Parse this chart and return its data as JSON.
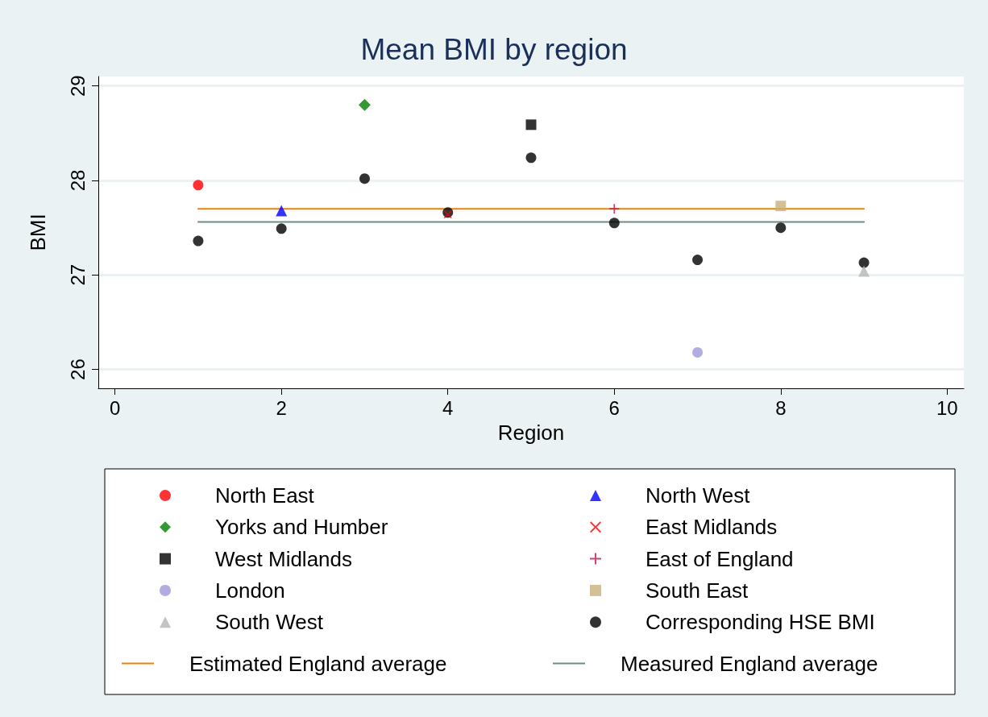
{
  "chart_data": {
    "type": "scatter",
    "title": "Mean BMI by region",
    "xlabel": "Region",
    "ylabel": "BMI",
    "xlim": [
      -0.2,
      10.2
    ],
    "xticks": [
      0,
      2,
      4,
      6,
      8,
      10
    ],
    "ylim": [
      25.8,
      29.1
    ],
    "yticks": [
      26,
      27,
      28,
      29
    ],
    "grid": "y",
    "legend": "bottom",
    "series": [
      {
        "name": "North East",
        "color": "#ff0000",
        "marker": "circle",
        "x": [
          1
        ],
        "values": [
          27.95
        ]
      },
      {
        "name": "North West",
        "color": "#0000ff",
        "marker": "triangle",
        "x": [
          2
        ],
        "values": [
          27.68
        ]
      },
      {
        "name": "Yorks and Humber",
        "color": "#008000",
        "marker": "diamond",
        "x": [
          3
        ],
        "values": [
          28.8
        ]
      },
      {
        "name": "East Midlands",
        "color": "#ff0000",
        "marker": "cross",
        "x": [
          4
        ],
        "values": [
          27.64
        ]
      },
      {
        "name": "West Midlands",
        "color": "#000000",
        "marker": "square",
        "x": [
          5
        ],
        "values": [
          28.59
        ]
      },
      {
        "name": "East of England",
        "color": "#c8104a",
        "marker": "plus",
        "x": [
          6
        ],
        "values": [
          27.7
        ]
      },
      {
        "name": "London",
        "color": "#9e98d9",
        "marker": "circle",
        "x": [
          7
        ],
        "values": [
          26.18
        ]
      },
      {
        "name": "South East",
        "color": "#c8b27a",
        "marker": "square",
        "x": [
          8
        ],
        "values": [
          27.73
        ]
      },
      {
        "name": "South West",
        "color": "#b5b5b5",
        "marker": "triangle",
        "x": [
          9
        ],
        "values": [
          27.04
        ]
      },
      {
        "name": "Corresponding HSE BMI",
        "color": "#000000",
        "marker": "circle",
        "x": [
          1,
          2,
          3,
          4,
          5,
          6,
          7,
          8,
          9
        ],
        "values": [
          27.36,
          27.49,
          28.02,
          27.66,
          28.24,
          27.55,
          27.16,
          27.5,
          27.13
        ]
      },
      {
        "name": "Estimated England average",
        "type": "line",
        "color": "#e8820c",
        "marker": "none",
        "x": [
          1,
          9
        ],
        "values": [
          27.7,
          27.7
        ]
      },
      {
        "name": "Measured England average",
        "type": "line",
        "color": "#6e8a86",
        "marker": "none",
        "x": [
          1,
          9
        ],
        "values": [
          27.56,
          27.56
        ]
      }
    ]
  }
}
